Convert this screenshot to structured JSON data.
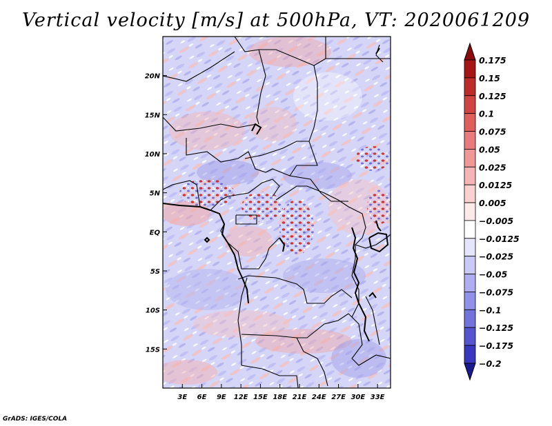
{
  "title": "Vertical velocity [m/s] at 500hPa, VT: 2020061209",
  "credit": "GrADS: IGES/COLA",
  "map": {
    "lon_range": [
      0,
      35
    ],
    "lat_range": [
      -20,
      25
    ],
    "x_ticks": [
      {
        "value": 3,
        "label": "3E"
      },
      {
        "value": 6,
        "label": "6E"
      },
      {
        "value": 9,
        "label": "9E"
      },
      {
        "value": 12,
        "label": "12E"
      },
      {
        "value": 15,
        "label": "15E"
      },
      {
        "value": 18,
        "label": "18E"
      },
      {
        "value": 21,
        "label": "21E"
      },
      {
        "value": 24,
        "label": "24E"
      },
      {
        "value": 27,
        "label": "27E"
      },
      {
        "value": 30,
        "label": "30E"
      },
      {
        "value": 33,
        "label": "33E"
      }
    ],
    "y_ticks": [
      {
        "value": 20,
        "label": "20N"
      },
      {
        "value": 15,
        "label": "15N"
      },
      {
        "value": 10,
        "label": "10N"
      },
      {
        "value": 5,
        "label": "5N"
      },
      {
        "value": 0,
        "label": "EQ"
      },
      {
        "value": -5,
        "label": "5S"
      },
      {
        "value": -10,
        "label": "10S"
      },
      {
        "value": -15,
        "label": "15S"
      }
    ]
  },
  "colorbar": {
    "levels": [
      {
        "label": "0.175",
        "color": "#a51515"
      },
      {
        "label": "0.15",
        "color": "#be2b2b"
      },
      {
        "label": "0.125",
        "color": "#d04444"
      },
      {
        "label": "0.1",
        "color": "#df5e5e"
      },
      {
        "label": "0.075",
        "color": "#e87b7b"
      },
      {
        "label": "0.05",
        "color": "#f09797"
      },
      {
        "label": "0.025",
        "color": "#f6b5b5"
      },
      {
        "label": "0.0125",
        "color": "#fad1d1"
      },
      {
        "label": "0.005",
        "color": "#fde9e9"
      },
      {
        "label": "−0.005",
        "color": "#ffffff"
      },
      {
        "label": "−0.0125",
        "color": "#e5e5fb"
      },
      {
        "label": "−0.025",
        "color": "#cacaf6"
      },
      {
        "label": "−0.05",
        "color": "#aeaef0"
      },
      {
        "label": "−0.075",
        "color": "#9191e7"
      },
      {
        "label": "−0.1",
        "color": "#7373dc"
      },
      {
        "label": "−0.125",
        "color": "#5555cf"
      },
      {
        "label": "−0.175",
        "color": "#3838be"
      },
      {
        "label": "−0.2",
        "color": "#2020a8"
      }
    ],
    "top_color": "#8b0c0c",
    "bottom_color": "#1a1a90"
  }
}
